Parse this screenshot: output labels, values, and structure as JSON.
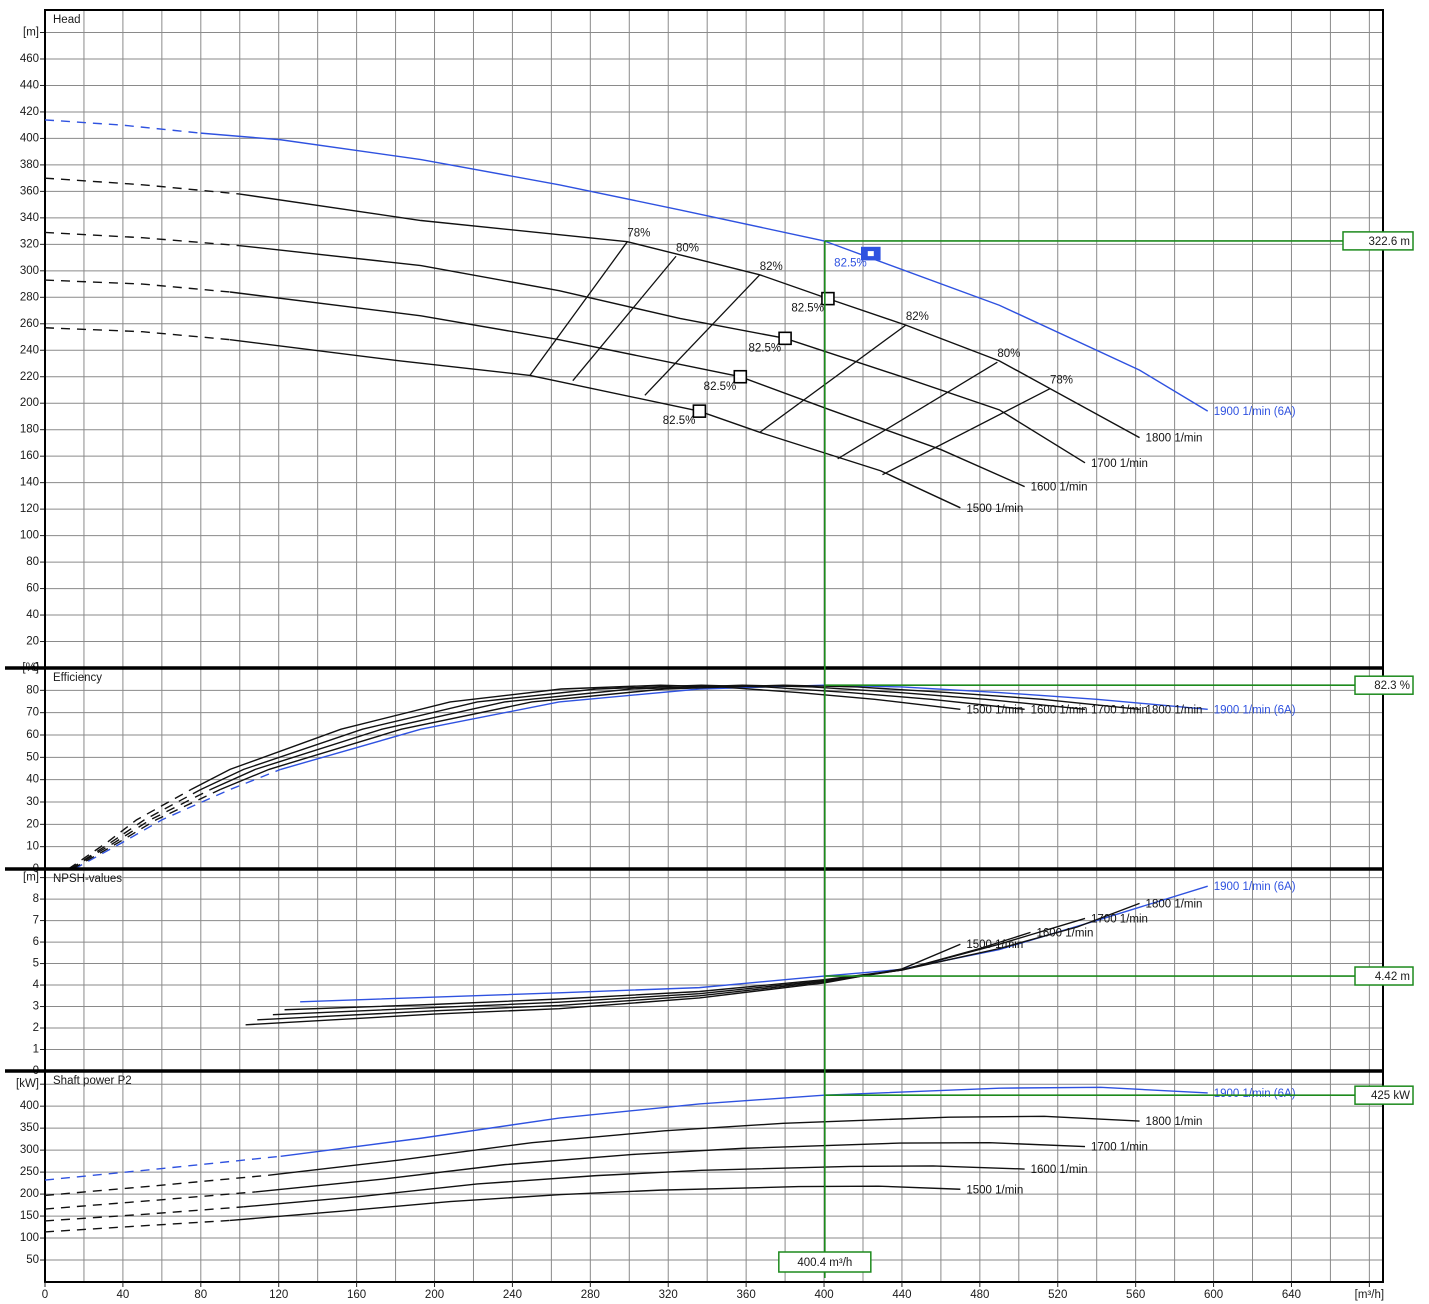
{
  "chart_data": [
    {
      "type": "line",
      "title": "Head",
      "xlim": [
        0,
        687
      ],
      "ylim": [
        0,
        497
      ],
      "yticks": [
        0,
        20,
        40,
        60,
        80,
        100,
        120,
        140,
        160,
        180,
        200,
        220,
        240,
        260,
        280,
        300,
        320,
        340,
        360,
        380,
        400,
        420,
        440,
        460,
        {
          "value": 480,
          "label": "[m]"
        }
      ],
      "series": [
        {
          "name": "1900 1/min (6A)",
          "color": "#2f52e0",
          "dashed_points": 3,
          "x": [
            0,
            40,
            80,
            121,
            193,
            264,
            326,
            400,
            490,
            562,
            597
          ],
          "values": [
            414,
            410,
            404,
            399,
            384,
            365,
            346,
            322.6,
            274,
            225,
            194
          ]
        },
        {
          "name": "1800 1/min",
          "color": "#111111",
          "dashed_points": 3,
          "x": [
            0,
            50,
            100,
            193,
            299,
            367,
            402,
            442,
            490,
            562
          ],
          "values": [
            370,
            365,
            358,
            338,
            322,
            297,
            279,
            259,
            232,
            174
          ]
        },
        {
          "name": "1700 1/min",
          "color": "#111111",
          "dashed_points": 3,
          "x": [
            0,
            50,
            100,
            193,
            264,
            326,
            380,
            442,
            490,
            534
          ],
          "values": [
            329,
            325,
            319,
            304,
            285,
            264,
            249,
            219,
            195,
            155
          ]
        },
        {
          "name": "1600 1/min",
          "color": "#111111",
          "dashed_points": 3,
          "x": [
            0,
            50,
            95,
            193,
            264,
            357,
            403,
            460,
            503
          ],
          "values": [
            293,
            290,
            284,
            266,
            248,
            220,
            195,
            165,
            137
          ]
        },
        {
          "name": "1500 1/min",
          "color": "#111111",
          "dashed_points": 3,
          "x": [
            0,
            50,
            95,
            182,
            249,
            336,
            367,
            429,
            470
          ],
          "values": [
            257,
            254,
            248,
            232,
            221,
            194,
            178,
            149,
            121
          ]
        }
      ],
      "iso_efficiency": [
        {
          "label": "78%",
          "x": [
            249,
            299
          ],
          "values": [
            221,
            322
          ]
        },
        {
          "label": "80%",
          "x": [
            271,
            324
          ],
          "values": [
            217,
            311
          ]
        },
        {
          "label": "82%",
          "x": [
            308,
            367
          ],
          "values": [
            206,
            297
          ]
        },
        {
          "label": "82%",
          "x": [
            367,
            442
          ],
          "values": [
            178,
            259
          ]
        },
        {
          "label": "80%",
          "x": [
            407,
            489
          ],
          "values": [
            158,
            231
          ]
        },
        {
          "label": "78%",
          "x": [
            430,
            516
          ],
          "values": [
            146,
            211
          ]
        }
      ],
      "bep": {
        "x": [
          424,
          402,
          380,
          357,
          336
        ],
        "values": [
          313,
          279,
          249,
          220,
          194
        ],
        "labels": [
          "82.5%",
          "82.5%",
          "82.5%",
          "82.5%",
          "82.5%"
        ],
        "colors": [
          "#2f52e0",
          "#111111",
          "#111111",
          "#111111",
          "#111111"
        ]
      },
      "operating_point": {
        "value": 322.6,
        "label": "322.6 m"
      }
    },
    {
      "type": "line",
      "title": "Efficiency",
      "xlim": [
        0,
        687
      ],
      "ylim": [
        0,
        90
      ],
      "yticks": [
        0,
        10,
        20,
        30,
        40,
        50,
        60,
        70,
        80,
        {
          "value": 90,
          "label": "[%]"
        }
      ],
      "series": [
        {
          "name": "1900 1/min (6A)",
          "color": "#2f52e0",
          "dashed_points": 5,
          "x": [
            15,
            40,
            60,
            95,
            121,
            193,
            264,
            336,
            400,
            440,
            490,
            540,
            597
          ],
          "values": [
            0,
            12,
            22,
            35.6,
            44.6,
            62.6,
            74.8,
            80.6,
            82.3,
            81.5,
            79,
            76,
            71.5
          ]
        },
        {
          "name": "1800 1/min",
          "color": "#111111",
          "dashed_points": 4,
          "x": [
            14,
            38,
            57,
            90,
            115,
            183,
            250,
            318,
            379,
            417,
            464,
            512,
            562
          ],
          "values": [
            0,
            12,
            22,
            35.6,
            44.6,
            62.6,
            74.8,
            80.6,
            82.3,
            81.5,
            79,
            76,
            71.5
          ]
        },
        {
          "name": "1700 1/min",
          "color": "#111111",
          "dashed_points": 4,
          "x": [
            13,
            36,
            54,
            85,
            108,
            173,
            236,
            301,
            358,
            394,
            439,
            483,
            534
          ],
          "values": [
            0,
            12,
            22,
            35.6,
            44.6,
            62.6,
            74.8,
            80.6,
            82.3,
            81.5,
            79,
            76,
            71.5
          ]
        },
        {
          "name": "1600 1/min",
          "color": "#111111",
          "dashed_points": 4,
          "x": [
            13,
            34,
            51,
            80,
            102,
            163,
            222,
            283,
            337,
            370,
            413,
            455,
            503
          ],
          "values": [
            0,
            12,
            22,
            35.6,
            44.6,
            62.6,
            74.8,
            80.6,
            82.3,
            81.5,
            79,
            76,
            71.5
          ]
        },
        {
          "name": "1500 1/min",
          "color": "#111111",
          "dashed_points": 4,
          "x": [
            12,
            32,
            47,
            75,
            95,
            152,
            208,
            265,
            316,
            347,
            387,
            426,
            470
          ],
          "values": [
            0,
            12,
            22,
            35.6,
            44.6,
            62.6,
            74.8,
            80.6,
            82.3,
            81.5,
            79,
            76,
            71.5
          ]
        }
      ],
      "operating_point": {
        "value": 82.3,
        "label": "82.3 %"
      }
    },
    {
      "type": "line",
      "title": "NPSH-values",
      "xlim": [
        0,
        687
      ],
      "ylim": [
        0,
        9.4
      ],
      "yticks": [
        0,
        1,
        2,
        3,
        4,
        5,
        6,
        7,
        8,
        {
          "value": 9,
          "label": "[m]"
        }
      ],
      "series": [
        {
          "name": "1900 1/min (6A)",
          "color": "#2f52e0",
          "x": [
            131,
            264,
            336,
            400,
            439,
            490,
            542,
            597
          ],
          "values": [
            3.22,
            3.64,
            3.88,
            4.42,
            4.72,
            5.65,
            7.06,
            8.6
          ]
        },
        {
          "name": "1800 1/min",
          "color": "#111111",
          "x": [
            123,
            200,
            264,
            336,
            400,
            440,
            490,
            530,
            562
          ],
          "values": [
            2.85,
            3.1,
            3.35,
            3.7,
            4.25,
            4.7,
            5.7,
            6.7,
            7.8
          ]
        },
        {
          "name": "1700 1/min",
          "color": "#111111",
          "x": [
            117,
            200,
            264,
            336,
            400,
            440,
            490,
            534
          ],
          "values": [
            2.62,
            2.95,
            3.2,
            3.6,
            4.2,
            4.7,
            5.9,
            7.1
          ]
        },
        {
          "name": "1600 1/min",
          "color": "#111111",
          "x": [
            109,
            200,
            264,
            336,
            400,
            440,
            480,
            506
          ],
          "values": [
            2.38,
            2.8,
            3.05,
            3.5,
            4.15,
            4.7,
            5.7,
            6.45
          ]
        },
        {
          "name": "1500 1/min",
          "color": "#111111",
          "x": [
            103,
            200,
            264,
            336,
            400,
            440,
            470
          ],
          "values": [
            2.15,
            2.65,
            2.9,
            3.4,
            4.1,
            4.75,
            5.9
          ]
        }
      ],
      "operating_point": {
        "value": 4.42,
        "label": "4.42 m"
      }
    },
    {
      "type": "line",
      "title": "Shaft power P2",
      "xlim": [
        0,
        687
      ],
      "ylim": [
        0,
        480
      ],
      "yticks": [
        50,
        100,
        150,
        200,
        250,
        300,
        350,
        400,
        {
          "value": 450,
          "label": "[kW]"
        }
      ],
      "xticks": [
        0,
        40,
        80,
        120,
        160,
        200,
        240,
        280,
        320,
        360,
        400,
        440,
        480,
        520,
        560,
        600,
        640,
        {
          "value": 680,
          "label": "[m³/h]"
        }
      ],
      "x_minor_ticks": [
        20,
        60,
        100,
        140,
        180,
        220,
        260,
        300,
        340,
        380,
        420,
        460,
        500,
        540,
        580,
        620,
        660
      ],
      "series": [
        {
          "name": "1900 1/min (6A)",
          "color": "#2f52e0",
          "dashed_points": 3,
          "x": [
            0,
            60,
            121,
            193,
            264,
            336,
            400,
            490,
            542,
            597
          ],
          "values": [
            232,
            258,
            286,
            327,
            373,
            405,
            425,
            441,
            443,
            430
          ]
        },
        {
          "name": "1800 1/min",
          "color": "#111111",
          "dashed_points": 3,
          "x": [
            0,
            57,
            115,
            183,
            250,
            318,
            379,
            464,
            513,
            562
          ],
          "values": [
            197,
            219,
            243,
            278,
            317,
            344,
            361,
            375,
            377,
            366
          ]
        },
        {
          "name": "1700 1/min",
          "color": "#111111",
          "dashed_points": 3,
          "x": [
            0,
            54,
            108,
            173,
            236,
            301,
            358,
            439,
            485,
            534
          ],
          "values": [
            166,
            185,
            205,
            234,
            267,
            290,
            304,
            316,
            317,
            308
          ]
        },
        {
          "name": "1600 1/min",
          "color": "#111111",
          "dashed_points": 3,
          "x": [
            0,
            51,
            102,
            163,
            222,
            283,
            337,
            413,
            456,
            503
          ],
          "values": [
            139,
            154,
            171,
            195,
            223,
            242,
            254,
            263,
            264,
            257
          ]
        },
        {
          "name": "1500 1/min",
          "color": "#111111",
          "dashed_points": 3,
          "x": [
            0,
            47,
            95,
            152,
            208,
            265,
            316,
            387,
            428,
            470
          ],
          "values": [
            114,
            127,
            140,
            161,
            183,
            199,
            209,
            217,
            218,
            211
          ]
        }
      ],
      "operating_point": {
        "value": 425,
        "label": "425 kW"
      },
      "operating_x": {
        "value": 400.4,
        "label": "400.4 m³/h",
        "color": "#1d8a1d"
      }
    }
  ]
}
